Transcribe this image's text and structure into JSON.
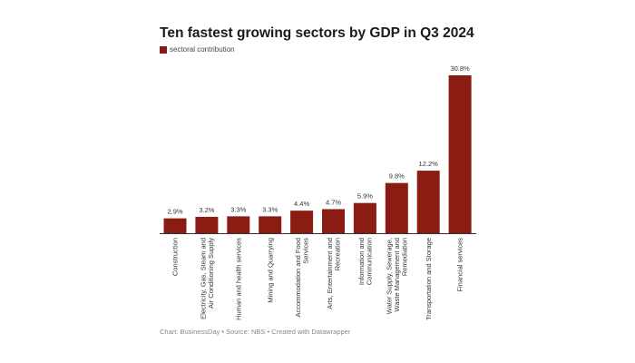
{
  "chart_data": {
    "type": "bar",
    "title": "Ten fastest growing sectors by GDP in Q3 2024",
    "legend": [
      {
        "name": "sectoral contribution",
        "color": "#8b1c14"
      }
    ],
    "legend_placement": "top-left",
    "categories": [
      [
        "Construction"
      ],
      [
        "Electricity, Gas, Steam and",
        "Air Conditioning Supply"
      ],
      [
        "Human and health services"
      ],
      [
        "Mining and Quarrying"
      ],
      [
        "Accommodation and Food",
        "Services"
      ],
      [
        "Arts, Entertainment and",
        "Recreation"
      ],
      [
        "Information and",
        "Communication"
      ],
      [
        "Water Supply, Sewerage,",
        "Waste Management and",
        "Remediation"
      ],
      [
        "Transportation and Storage"
      ],
      [
        "Financial services"
      ]
    ],
    "values": [
      2.9,
      3.2,
      3.3,
      3.3,
      4.4,
      4.7,
      5.9,
      9.8,
      12.2,
      30.8
    ],
    "value_labels": [
      "2.9%",
      "3.2%",
      "3.3%",
      "3.3%",
      "4.4%",
      "4.7%",
      "5.9%",
      "9.8%",
      "12.2%",
      "30.8%"
    ],
    "unit": "%",
    "ylim": [
      0,
      31
    ],
    "grid": false,
    "bar_color": "#8b1c14",
    "footer": "Chart: BusinessDay • Source: NBS • Created with Datawrapper"
  }
}
